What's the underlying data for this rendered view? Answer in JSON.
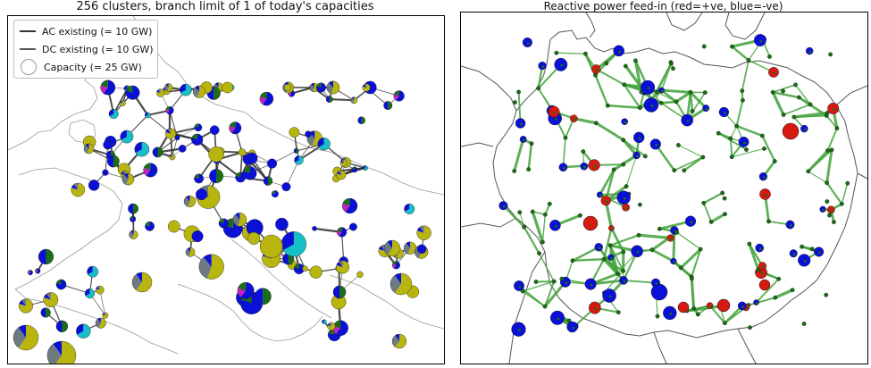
{
  "left_map": {
    "title": "256 clusters, branch limit of 1 of today's capacities",
    "legend": {
      "ac_label": "AC existing (= 10 GW)",
      "dc_label": "DC existing (= 10 GW)",
      "capacity_label": "Capacity (= 25 GW)"
    }
  },
  "right_map": {
    "title": "Reactive power feed-in (red=+ve, blue=-ve)"
  },
  "colors": {
    "coast": "#9a9a9a",
    "grid_line": "#2e2e2e",
    "blue": "#0b10d6",
    "olive": "#b8b50f",
    "cyan": "#17c0c6",
    "magenta": "#c521c0",
    "green": "#1b6e15",
    "red": "#d51a12",
    "grey": "#6e7a82",
    "line_green": "#41a33a"
  }
}
